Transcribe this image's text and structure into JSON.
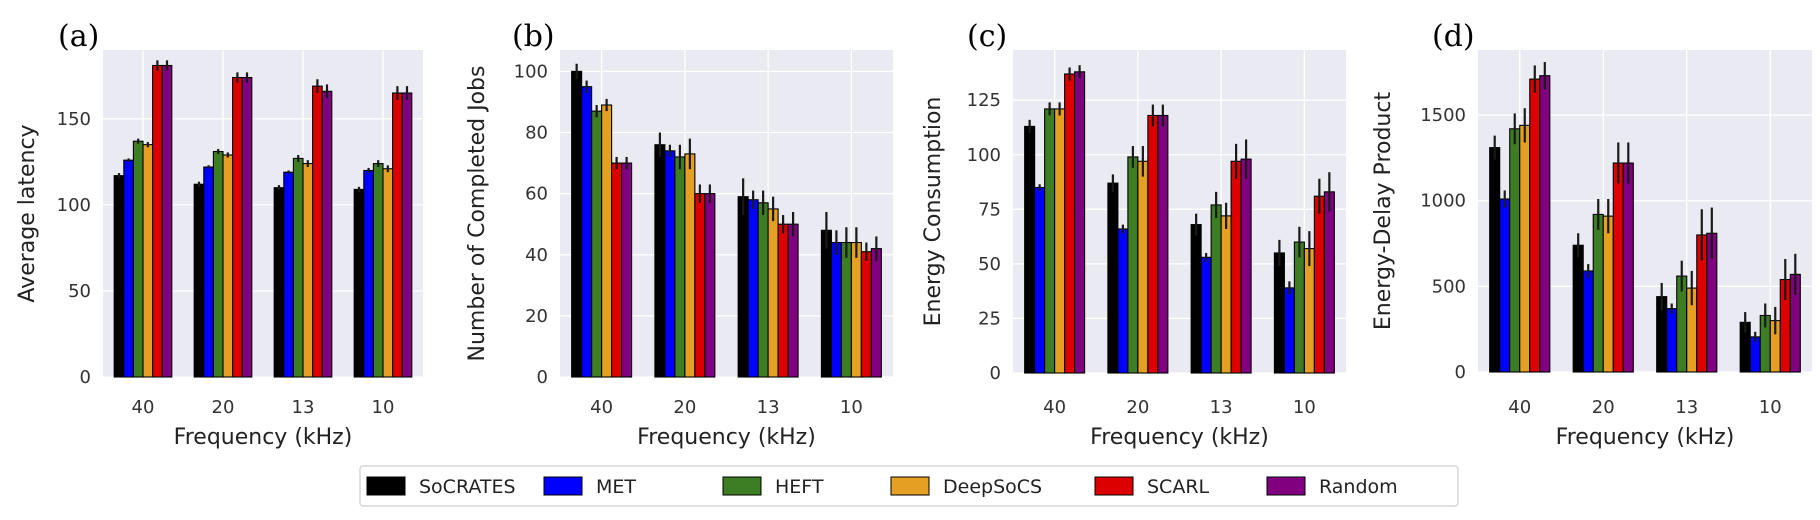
{
  "colors": {
    "plot_background": "#eaeaf2",
    "grid": "#ffffff",
    "bar_edge": "#000000",
    "error_bar": "#1a1a1a"
  },
  "legend": {
    "placement": "bottom-center",
    "items": [
      {
        "name": "SoCRATES",
        "color": "#000000"
      },
      {
        "name": "MET",
        "color": "#0000ff"
      },
      {
        "name": "HEFT",
        "color": "#3d7d23"
      },
      {
        "name": "DeepSoCS",
        "color": "#e5a024"
      },
      {
        "name": "SCARL",
        "color": "#dd0000"
      },
      {
        "name": "Random",
        "color": "#800080"
      }
    ]
  },
  "chart_data": [
    {
      "type": "bar",
      "panel_label": "(a)",
      "xlabel": "Frequency (kHz)",
      "ylabel": "Average latency",
      "categories": [
        "40",
        "20",
        "13",
        "10"
      ],
      "ylim": [
        0,
        190
      ],
      "yticks": [
        0,
        50,
        100,
        150
      ],
      "grid": true,
      "series": [
        {
          "name": "SoCRATES",
          "values": [
            117,
            112,
            110,
            109
          ],
          "errors": [
            1.5,
            1.5,
            1.5,
            1.5
          ]
        },
        {
          "name": "MET",
          "values": [
            126,
            122,
            119,
            120
          ],
          "errors": [
            1,
            1,
            1,
            1.5
          ]
        },
        {
          "name": "HEFT",
          "values": [
            137,
            131,
            127,
            124
          ],
          "errors": [
            1.5,
            1.5,
            2,
            2
          ]
        },
        {
          "name": "DeepSoCS",
          "values": [
            135,
            129,
            124,
            121
          ],
          "errors": [
            1.5,
            1.5,
            2,
            2
          ]
        },
        {
          "name": "SCARL",
          "values": [
            181,
            174,
            169,
            165
          ],
          "errors": [
            3,
            3,
            4,
            4
          ]
        },
        {
          "name": "Random",
          "values": [
            181,
            174,
            166,
            165
          ],
          "errors": [
            3,
            3,
            4,
            4
          ]
        }
      ]
    },
    {
      "type": "bar",
      "panel_label": "(b)",
      "xlabel": "Frequency (kHz)",
      "ylabel": "Number of Completed Jobs",
      "categories": [
        "40",
        "20",
        "13",
        "10"
      ],
      "ylim": [
        0,
        107
      ],
      "yticks": [
        0,
        20,
        40,
        60,
        80,
        100
      ],
      "grid": true,
      "series": [
        {
          "name": "SoCRATES",
          "values": [
            100,
            76,
            59,
            48
          ],
          "errors": [
            2.5,
            4,
            6,
            6
          ]
        },
        {
          "name": "MET",
          "values": [
            95,
            74,
            58,
            44
          ],
          "errors": [
            2,
            2,
            3,
            4
          ]
        },
        {
          "name": "HEFT",
          "values": [
            87,
            72,
            57,
            44
          ],
          "errors": [
            2,
            4,
            4,
            5
          ]
        },
        {
          "name": "DeepSoCS",
          "values": [
            89,
            73,
            55,
            44
          ],
          "errors": [
            2,
            5,
            4,
            5
          ]
        },
        {
          "name": "SCARL",
          "values": [
            70,
            60,
            50,
            41
          ],
          "errors": [
            2,
            3,
            3,
            3
          ]
        },
        {
          "name": "Random",
          "values": [
            70,
            60,
            50,
            42
          ],
          "errors": [
            2,
            3,
            4,
            4
          ]
        }
      ]
    },
    {
      "type": "bar",
      "panel_label": "(c)",
      "xlabel": "Frequency (kHz)",
      "ylabel": "Energy Consumption",
      "categories": [
        "40",
        "20",
        "13",
        "10"
      ],
      "ylim": [
        0,
        148
      ],
      "yticks": [
        0,
        25,
        50,
        75,
        100,
        125
      ],
      "grid": true,
      "series": [
        {
          "name": "SoCRATES",
          "values": [
            113,
            87,
            68,
            55
          ],
          "errors": [
            3,
            4,
            5,
            6
          ]
        },
        {
          "name": "MET",
          "values": [
            85,
            66,
            53,
            39
          ],
          "errors": [
            1.5,
            2,
            2,
            3
          ]
        },
        {
          "name": "HEFT",
          "values": [
            121,
            99,
            77,
            60
          ],
          "errors": [
            3,
            5,
            6,
            7
          ]
        },
        {
          "name": "DeepSoCS",
          "values": [
            121,
            97,
            72,
            57
          ],
          "errors": [
            3,
            7,
            6,
            8
          ]
        },
        {
          "name": "SCARL",
          "values": [
            137,
            118,
            97,
            81
          ],
          "errors": [
            3,
            5,
            8,
            8
          ]
        },
        {
          "name": "Random",
          "values": [
            138,
            118,
            98,
            83
          ],
          "errors": [
            3,
            5,
            9,
            9
          ]
        }
      ]
    },
    {
      "type": "bar",
      "panel_label": "(d)",
      "xlabel": "Frequency (kHz)",
      "ylabel": "Energy-Delay Product",
      "categories": [
        "40",
        "20",
        "13",
        "10"
      ],
      "ylim": [
        0,
        1880
      ],
      "yticks": [
        0,
        500,
        1000,
        1500
      ],
      "grid": true,
      "series": [
        {
          "name": "SoCRATES",
          "values": [
            1310,
            740,
            440,
            290
          ],
          "errors": [
            70,
            70,
            80,
            60
          ]
        },
        {
          "name": "MET",
          "values": [
            1010,
            590,
            370,
            205
          ],
          "errors": [
            50,
            40,
            30,
            30
          ]
        },
        {
          "name": "HEFT",
          "values": [
            1420,
            920,
            560,
            330
          ],
          "errors": [
            90,
            90,
            90,
            70
          ]
        },
        {
          "name": "DeepSoCS",
          "values": [
            1440,
            910,
            490,
            300
          ],
          "errors": [
            100,
            100,
            100,
            80
          ]
        },
        {
          "name": "SCARL",
          "values": [
            1710,
            1220,
            800,
            540
          ],
          "errors": [
            80,
            120,
            150,
            120
          ]
        },
        {
          "name": "Random",
          "values": [
            1730,
            1220,
            810,
            570
          ],
          "errors": [
            80,
            120,
            150,
            120
          ]
        }
      ]
    }
  ]
}
